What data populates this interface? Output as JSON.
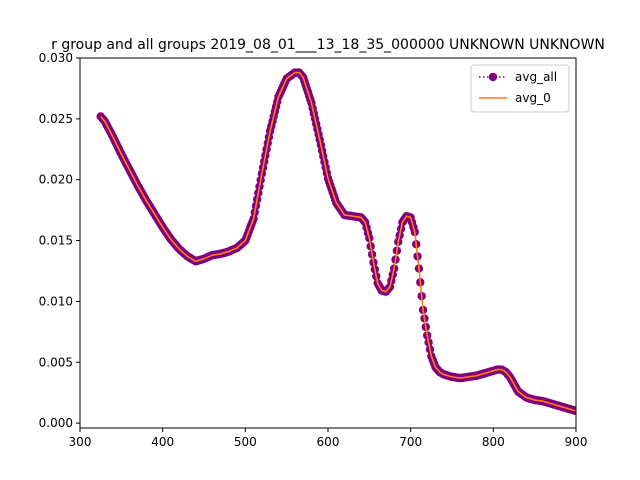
{
  "chart_data": {
    "type": "line",
    "title": "r group and all groups 2019_08_01___13_18_35_000000 UNKNOWN UNKNOWN",
    "xlabel": "",
    "ylabel": "",
    "xlim": [
      300,
      900
    ],
    "ylim": [
      -0.0004,
      0.03
    ],
    "xticks": [
      300,
      400,
      500,
      600,
      700,
      800,
      900
    ],
    "yticks": [
      0.0,
      0.005,
      0.01,
      0.015,
      0.02,
      0.025,
      0.03
    ],
    "ytick_labels": [
      "0.000",
      "0.005",
      "0.010",
      "0.015",
      "0.020",
      "0.025",
      "0.030"
    ],
    "grid": false,
    "legend_position": "top-right",
    "series": [
      {
        "name": "avg_all",
        "color": "#800080",
        "style": "dotted-line-with-circle-markers",
        "x": [
          325,
          330,
          340,
          350,
          360,
          370,
          380,
          390,
          400,
          410,
          420,
          430,
          440,
          450,
          460,
          470,
          480,
          490,
          500,
          510,
          520,
          530,
          540,
          550,
          560,
          565,
          570,
          580,
          590,
          600,
          610,
          620,
          630,
          640,
          645,
          650,
          655,
          660,
          665,
          670,
          675,
          680,
          685,
          690,
          695,
          700,
          705,
          710,
          715,
          720,
          725,
          730,
          735,
          740,
          750,
          760,
          770,
          780,
          790,
          800,
          805,
          810,
          815,
          820,
          830,
          840,
          850,
          860,
          870,
          880,
          890,
          900
        ],
        "y": [
          0.0252,
          0.0248,
          0.0235,
          0.0221,
          0.0208,
          0.0195,
          0.0183,
          0.0172,
          0.0161,
          0.0151,
          0.0143,
          0.0137,
          0.0133,
          0.0135,
          0.0138,
          0.0139,
          0.0141,
          0.0144,
          0.015,
          0.0168,
          0.0205,
          0.024,
          0.0268,
          0.0283,
          0.0288,
          0.0288,
          0.0284,
          0.0263,
          0.0233,
          0.0201,
          0.0181,
          0.0171,
          0.017,
          0.0169,
          0.0165,
          0.0152,
          0.0132,
          0.0115,
          0.0109,
          0.0108,
          0.0112,
          0.0127,
          0.0149,
          0.0165,
          0.017,
          0.0169,
          0.0157,
          0.0127,
          0.0093,
          0.0072,
          0.0055,
          0.0046,
          0.0042,
          0.004,
          0.0038,
          0.0037,
          0.0038,
          0.0039,
          0.0041,
          0.0043,
          0.0044,
          0.0044,
          0.0042,
          0.0038,
          0.0026,
          0.0021,
          0.0019,
          0.0018,
          0.0016,
          0.0014,
          0.0012,
          0.001
        ]
      },
      {
        "name": "avg_0",
        "color": "#ff7f0e",
        "style": "solid-line",
        "x": [
          325,
          330,
          340,
          350,
          360,
          370,
          380,
          390,
          400,
          410,
          420,
          430,
          440,
          450,
          460,
          470,
          480,
          490,
          500,
          510,
          520,
          530,
          540,
          550,
          560,
          565,
          570,
          580,
          590,
          600,
          610,
          620,
          630,
          640,
          645,
          650,
          655,
          660,
          665,
          670,
          675,
          680,
          685,
          690,
          695,
          700,
          705,
          710,
          715,
          720,
          725,
          730,
          735,
          740,
          750,
          760,
          770,
          780,
          790,
          800,
          805,
          810,
          815,
          820,
          830,
          840,
          850,
          860,
          870,
          880,
          890,
          900
        ],
        "y": [
          0.0252,
          0.0248,
          0.0235,
          0.0221,
          0.0208,
          0.0195,
          0.0183,
          0.0172,
          0.0161,
          0.0151,
          0.0143,
          0.0137,
          0.0133,
          0.0135,
          0.0138,
          0.0139,
          0.0141,
          0.0144,
          0.015,
          0.0168,
          0.0205,
          0.024,
          0.0268,
          0.0283,
          0.0288,
          0.0288,
          0.0284,
          0.0263,
          0.0233,
          0.0201,
          0.0181,
          0.0171,
          0.017,
          0.0169,
          0.0165,
          0.0152,
          0.0132,
          0.0115,
          0.0109,
          0.0108,
          0.0112,
          0.0127,
          0.0149,
          0.0165,
          0.017,
          0.0169,
          0.0157,
          0.0127,
          0.0093,
          0.0072,
          0.0055,
          0.0046,
          0.0042,
          0.004,
          0.0038,
          0.0037,
          0.0038,
          0.0039,
          0.0041,
          0.0043,
          0.0044,
          0.0044,
          0.0042,
          0.0038,
          0.0026,
          0.0021,
          0.0019,
          0.0018,
          0.0016,
          0.0014,
          0.0012,
          0.001
        ]
      }
    ]
  }
}
